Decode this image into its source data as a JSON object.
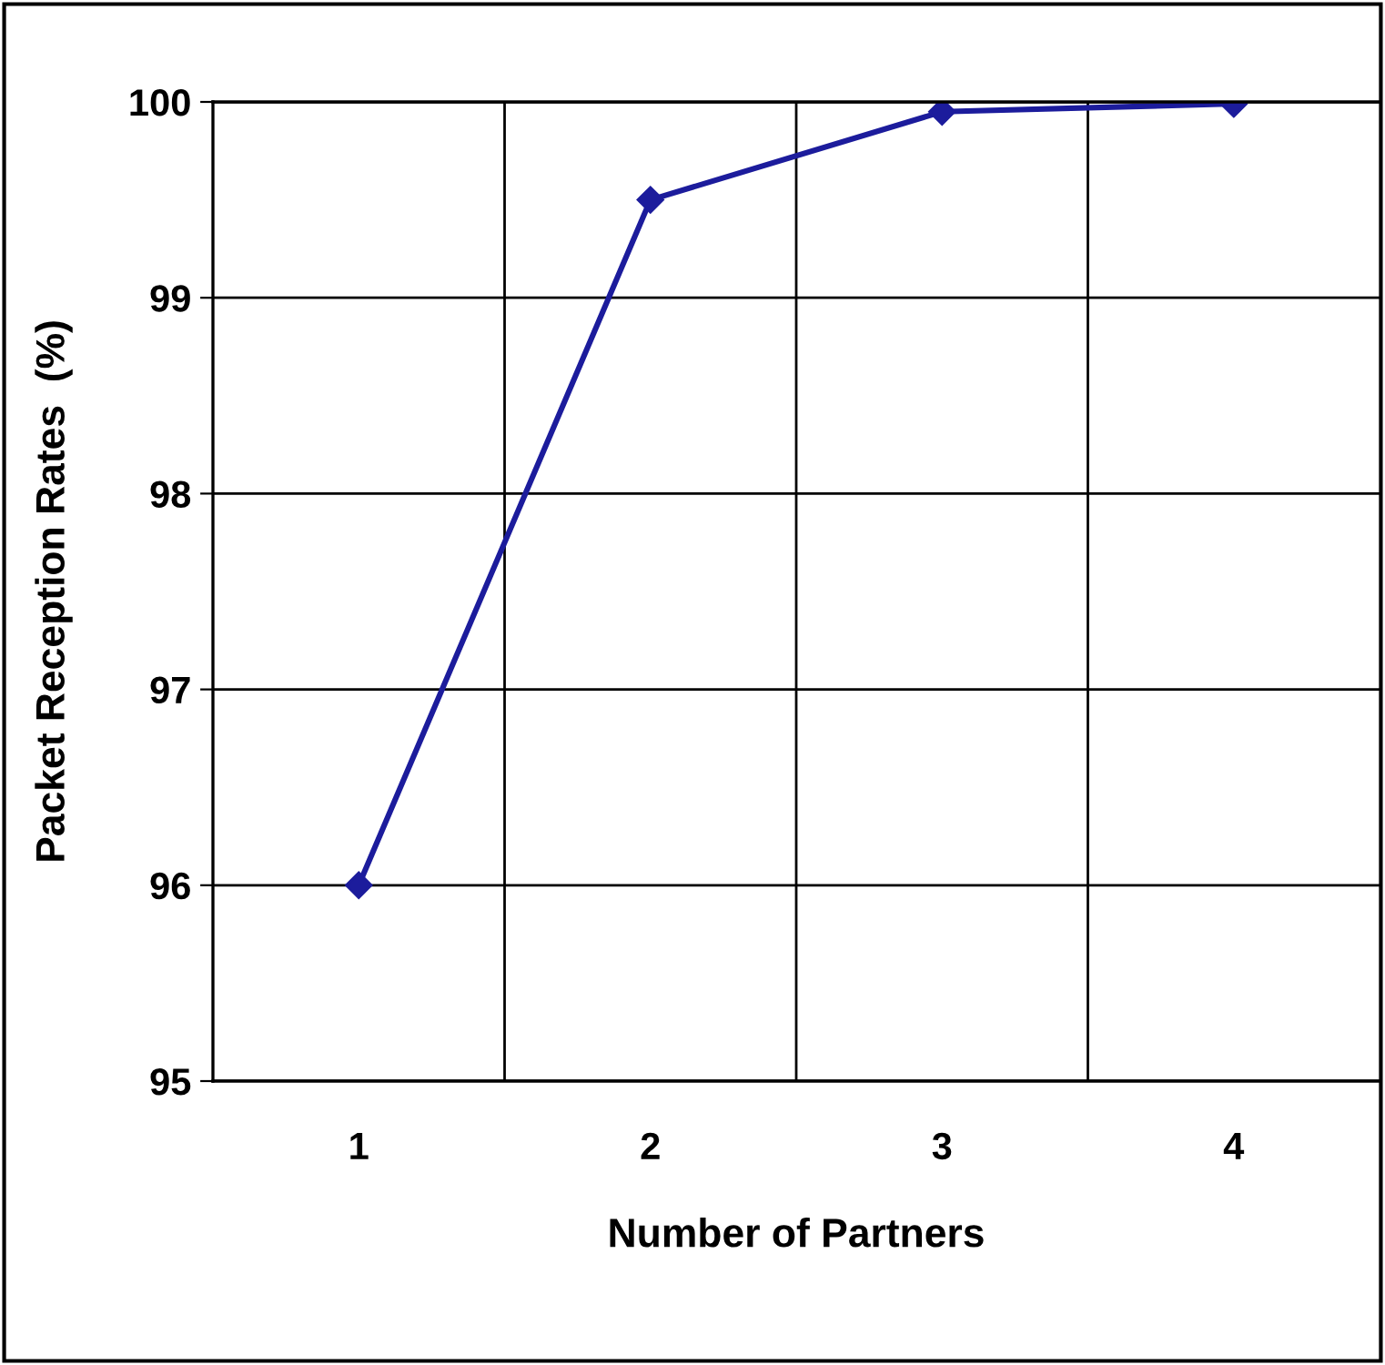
{
  "chart_data": {
    "type": "line",
    "xlabel": "Number of Partners",
    "ylabel": "Packet Reception Rates  (%)",
    "categories": [
      "1",
      "2",
      "3",
      "4"
    ],
    "series": [
      {
        "color": "#1c1c9c",
        "values": [
          96.0,
          99.5,
          99.95,
          99.99
        ]
      }
    ],
    "ylim": [
      95,
      100
    ],
    "yticks": [
      95,
      96,
      97,
      98,
      99,
      100
    ],
    "grid": true,
    "marker": "diamond",
    "line_style": "solid",
    "legend": false
  }
}
